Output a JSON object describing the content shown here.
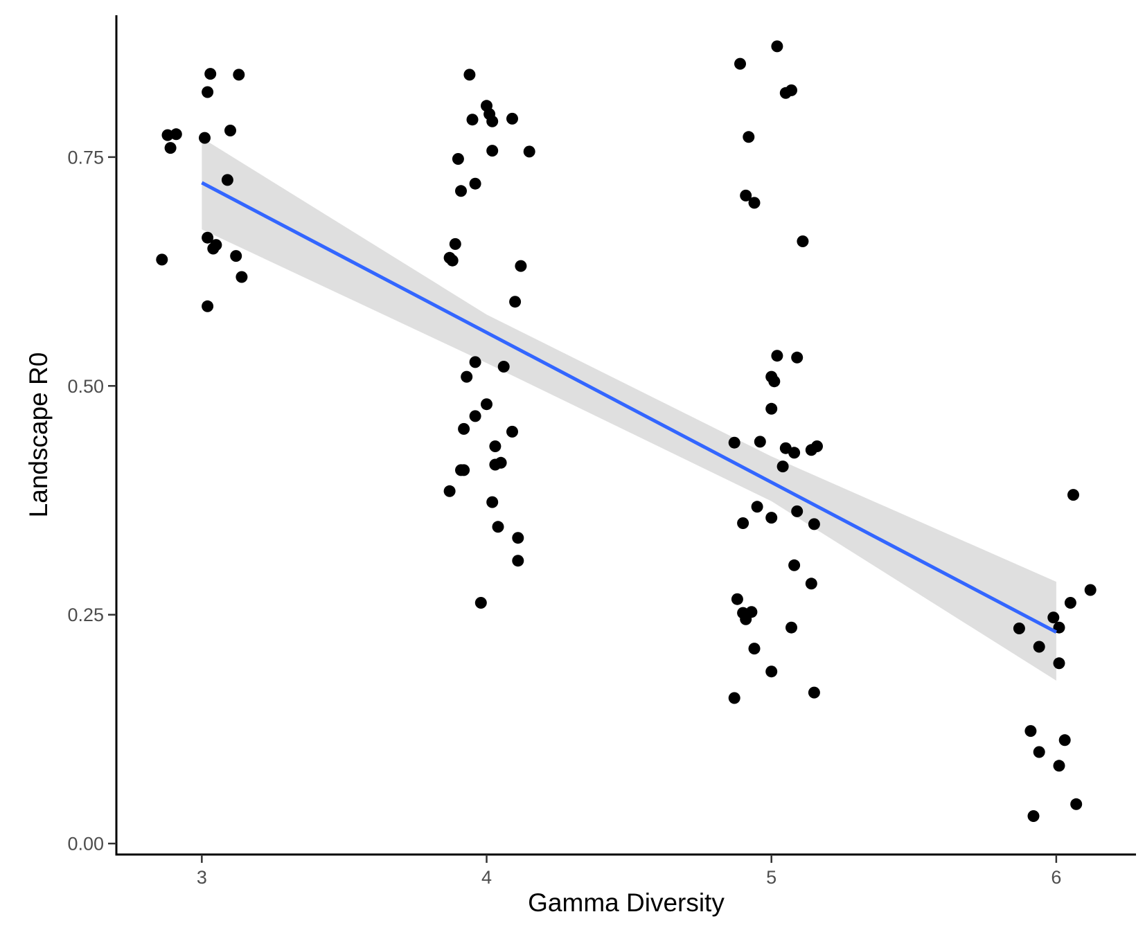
{
  "chart_data": {
    "type": "scatter",
    "title": "",
    "xlabel": "Gamma Diversity",
    "ylabel": "Landscape R0",
    "xlim": [
      2.7,
      6.28
    ],
    "ylim": [
      -0.012,
      0.905
    ],
    "x_ticks": [
      3,
      4,
      5,
      6
    ],
    "x_tick_labels": [
      "3",
      "4",
      "5",
      "6"
    ],
    "y_ticks": [
      0,
      0.25,
      0.5,
      0.75
    ],
    "y_tick_labels": [
      "0.00",
      "0.25",
      "0.50",
      "0.75"
    ],
    "grid": false,
    "legend": "none",
    "point_color": "#000000",
    "line_color": "#3366ff",
    "band_color": "#d9d9d9",
    "points": [
      [
        2.86,
        0.638
      ],
      [
        2.88,
        0.774
      ],
      [
        2.89,
        0.76
      ],
      [
        2.91,
        0.775
      ],
      [
        3.01,
        0.771
      ],
      [
        3.02,
        0.821
      ],
      [
        3.02,
        0.587
      ],
      [
        3.02,
        0.662
      ],
      [
        3.03,
        0.841
      ],
      [
        3.04,
        0.65
      ],
      [
        3.05,
        0.654
      ],
      [
        3.09,
        0.725
      ],
      [
        3.1,
        0.779
      ],
      [
        3.12,
        0.642
      ],
      [
        3.13,
        0.84
      ],
      [
        3.14,
        0.619
      ],
      [
        3.87,
        0.385
      ],
      [
        3.87,
        0.64
      ],
      [
        3.88,
        0.637
      ],
      [
        3.89,
        0.655
      ],
      [
        3.9,
        0.748
      ],
      [
        3.91,
        0.713
      ],
      [
        3.91,
        0.408
      ],
      [
        3.92,
        0.408
      ],
      [
        3.92,
        0.453
      ],
      [
        3.93,
        0.51
      ],
      [
        3.94,
        0.84
      ],
      [
        3.95,
        0.791
      ],
      [
        3.96,
        0.526
      ],
      [
        3.96,
        0.467
      ],
      [
        3.96,
        0.721
      ],
      [
        3.98,
        0.263
      ],
      [
        4.0,
        0.48
      ],
      [
        4.0,
        0.806
      ],
      [
        4.01,
        0.797
      ],
      [
        4.02,
        0.757
      ],
      [
        4.02,
        0.789
      ],
      [
        4.02,
        0.373
      ],
      [
        4.03,
        0.414
      ],
      [
        4.03,
        0.434
      ],
      [
        4.04,
        0.346
      ],
      [
        4.05,
        0.416
      ],
      [
        4.06,
        0.521
      ],
      [
        4.09,
        0.45
      ],
      [
        4.09,
        0.792
      ],
      [
        4.1,
        0.592
      ],
      [
        4.11,
        0.334
      ],
      [
        4.11,
        0.309
      ],
      [
        4.12,
        0.631
      ],
      [
        4.15,
        0.756
      ],
      [
        4.87,
        0.438
      ],
      [
        4.87,
        0.159
      ],
      [
        4.88,
        0.267
      ],
      [
        4.89,
        0.852
      ],
      [
        4.9,
        0.35
      ],
      [
        4.9,
        0.252
      ],
      [
        4.91,
        0.245
      ],
      [
        4.91,
        0.708
      ],
      [
        4.92,
        0.772
      ],
      [
        4.93,
        0.253
      ],
      [
        4.94,
        0.213
      ],
      [
        4.94,
        0.7
      ],
      [
        4.95,
        0.368
      ],
      [
        4.96,
        0.439
      ],
      [
        5.0,
        0.356
      ],
      [
        5.0,
        0.188
      ],
      [
        5.0,
        0.475
      ],
      [
        5.0,
        0.51
      ],
      [
        5.01,
        0.505
      ],
      [
        5.02,
        0.533
      ],
      [
        5.02,
        0.871
      ],
      [
        5.04,
        0.412
      ],
      [
        5.05,
        0.432
      ],
      [
        5.05,
        0.82
      ],
      [
        5.07,
        0.236
      ],
      [
        5.07,
        0.823
      ],
      [
        5.08,
        0.427
      ],
      [
        5.08,
        0.304
      ],
      [
        5.09,
        0.363
      ],
      [
        5.09,
        0.531
      ],
      [
        5.11,
        0.658
      ],
      [
        5.14,
        0.284
      ],
      [
        5.14,
        0.43
      ],
      [
        5.15,
        0.349
      ],
      [
        5.15,
        0.165
      ],
      [
        5.16,
        0.434
      ],
      [
        5.87,
        0.235
      ],
      [
        5.91,
        0.123
      ],
      [
        5.92,
        0.03
      ],
      [
        5.94,
        0.215
      ],
      [
        5.94,
        0.1
      ],
      [
        5.99,
        0.247
      ],
      [
        6.01,
        0.236
      ],
      [
        6.01,
        0.197
      ],
      [
        6.01,
        0.085
      ],
      [
        6.03,
        0.113
      ],
      [
        6.05,
        0.263
      ],
      [
        6.06,
        0.381
      ],
      [
        6.07,
        0.043
      ],
      [
        6.12,
        0.277
      ]
    ],
    "fit": {
      "x_start": 3.0,
      "y_start": 0.722,
      "x_end": 6.0,
      "y_end": 0.231
    },
    "confidence_band": {
      "x": [
        3.0,
        4.0,
        5.0,
        6.0
      ],
      "upper": [
        0.771,
        0.578,
        0.423,
        0.286
      ],
      "lower": [
        0.671,
        0.525,
        0.374,
        0.178
      ]
    }
  }
}
